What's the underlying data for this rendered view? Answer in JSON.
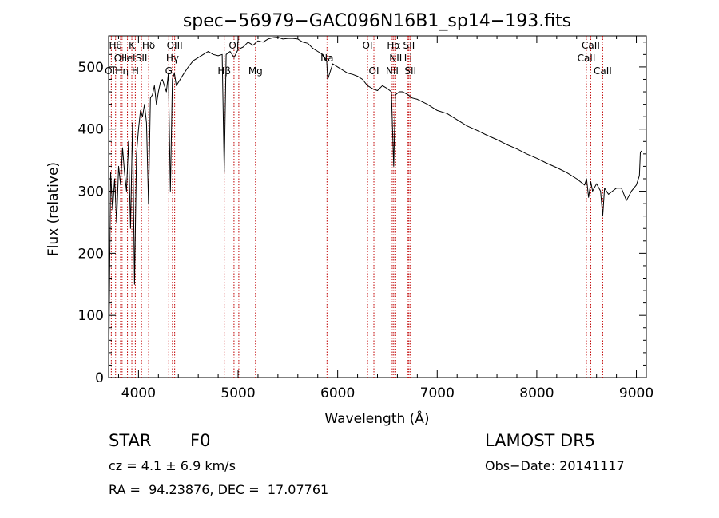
{
  "chart_data": {
    "type": "line",
    "title": "spec−56979−GAC096N16B1_sp14−193.fits",
    "xlabel": "Wavelength (Å)",
    "ylabel": "Flux (relative)",
    "xlim": [
      3700,
      9100
    ],
    "ylim": [
      0,
      550
    ],
    "x_ticks": [
      4000,
      5000,
      6000,
      7000,
      8000,
      9000
    ],
    "y_ticks": [
      0,
      100,
      200,
      300,
      400,
      500
    ],
    "grid": false,
    "colors": {
      "spectrum": "#000000",
      "line_markers": "#c00000",
      "axes": "#000000"
    },
    "series": [
      {
        "x": [
          3700,
          3720,
          3740,
          3760,
          3780,
          3800,
          3820,
          3840,
          3860,
          3880,
          3900,
          3920,
          3940,
          3960,
          3980,
          4000,
          4020,
          4040,
          4060,
          4080,
          4100,
          4120,
          4140,
          4160,
          4180,
          4200,
          4220,
          4240,
          4260,
          4280,
          4300,
          4320,
          4340,
          4360,
          4380,
          4400,
          4450,
          4500,
          4550,
          4600,
          4650,
          4700,
          4750,
          4800,
          4840,
          4861,
          4880,
          4920,
          4960,
          5000,
          5050,
          5100,
          5150,
          5200,
          5250,
          5300,
          5350,
          5400,
          5450,
          5500,
          5550,
          5600,
          5650,
          5700,
          5750,
          5800,
          5850,
          5890,
          5900,
          5950,
          6000,
          6050,
          6100,
          6150,
          6200,
          6250,
          6300,
          6350,
          6400,
          6450,
          6500,
          6540,
          6563,
          6580,
          6620,
          6650,
          6700,
          6750,
          6800,
          6900,
          7000,
          7100,
          7200,
          7300,
          7400,
          7500,
          7600,
          7700,
          7800,
          7900,
          8000,
          8100,
          8200,
          8300,
          8400,
          8480,
          8500,
          8520,
          8542,
          8560,
          8600,
          8640,
          8662,
          8680,
          8720,
          8760,
          8800,
          8850,
          8900,
          8950,
          9000,
          9030,
          9040,
          9050
        ],
        "values": [
          0,
          330,
          270,
          320,
          250,
          340,
          310,
          370,
          330,
          300,
          380,
          240,
          410,
          150,
          360,
          400,
          430,
          420,
          440,
          410,
          280,
          450,
          455,
          470,
          440,
          460,
          475,
          480,
          470,
          460,
          490,
          300,
          480,
          490,
          470,
          475,
          488,
          500,
          510,
          515,
          520,
          525,
          520,
          518,
          520,
          330,
          520,
          525,
          515,
          528,
          532,
          540,
          535,
          542,
          540,
          545,
          547,
          548,
          545,
          546,
          546,
          545,
          540,
          538,
          530,
          525,
          520,
          510,
          480,
          505,
          500,
          495,
          490,
          488,
          485,
          480,
          470,
          465,
          462,
          470,
          465,
          460,
          340,
          455,
          460,
          460,
          456,
          450,
          448,
          440,
          430,
          425,
          415,
          405,
          398,
          390,
          383,
          375,
          368,
          360,
          353,
          345,
          338,
          330,
          320,
          310,
          320,
          290,
          315,
          300,
          312,
          300,
          260,
          305,
          295,
          300,
          305,
          305,
          285,
          300,
          310,
          325,
          362,
          365
        ]
      }
    ],
    "line_markers": [
      {
        "wl": 3727,
        "label": "OII",
        "row": 2
      },
      {
        "wl": 3770,
        "label": "Hθ",
        "row": 0
      },
      {
        "wl": 3820,
        "label": "OII",
        "row": 1
      },
      {
        "wl": 3835,
        "label": "Hη",
        "row": 2
      },
      {
        "wl": 3889,
        "label": "HeI",
        "row": 1
      },
      {
        "wl": 3933,
        "label": "K",
        "row": 0
      },
      {
        "wl": 3968,
        "label": "H",
        "row": 2
      },
      {
        "wl": 4030,
        "label": "SII",
        "row": 1
      },
      {
        "wl": 4102,
        "label": "Hδ",
        "row": 0
      },
      {
        "wl": 4304,
        "label": "G",
        "row": 2
      },
      {
        "wl": 4341,
        "label": "Hγ",
        "row": 1
      },
      {
        "wl": 4363,
        "label": "OIII",
        "row": 0
      },
      {
        "wl": 4861,
        "label": "Hβ",
        "row": 2
      },
      {
        "wl": 4959,
        "label": "OI",
        "row": 0
      },
      {
        "wl": 5007,
        "label": "",
        "row": 1
      },
      {
        "wl": 5175,
        "label": "Mg",
        "row": 2
      },
      {
        "wl": 5893,
        "label": "Na",
        "row": 1
      },
      {
        "wl": 6300,
        "label": "OI",
        "row": 0
      },
      {
        "wl": 6364,
        "label": "OI",
        "row": 2
      },
      {
        "wl": 6548,
        "label": "NII",
        "row": 2
      },
      {
        "wl": 6563,
        "label": "Hα",
        "row": 0
      },
      {
        "wl": 6583,
        "label": "NII",
        "row": 1
      },
      {
        "wl": 6707,
        "label": "Li",
        "row": 1
      },
      {
        "wl": 6716,
        "label": "SII",
        "row": 0
      },
      {
        "wl": 6731,
        "label": "SII",
        "row": 2
      },
      {
        "wl": 8498,
        "label": "CaII",
        "row": 1
      },
      {
        "wl": 8542,
        "label": "CaII",
        "row": 0
      },
      {
        "wl": 8662,
        "label": "CaII",
        "row": 2
      }
    ]
  },
  "info": {
    "class_label": "STAR",
    "subclass": "F0",
    "survey": "LAMOST DR5",
    "cz": "cz = 4.1 ± 6.9 km/s",
    "obs_date": "Obs−Date: 20141117",
    "coords": "RA =  94.23876, DEC =  17.07761"
  }
}
